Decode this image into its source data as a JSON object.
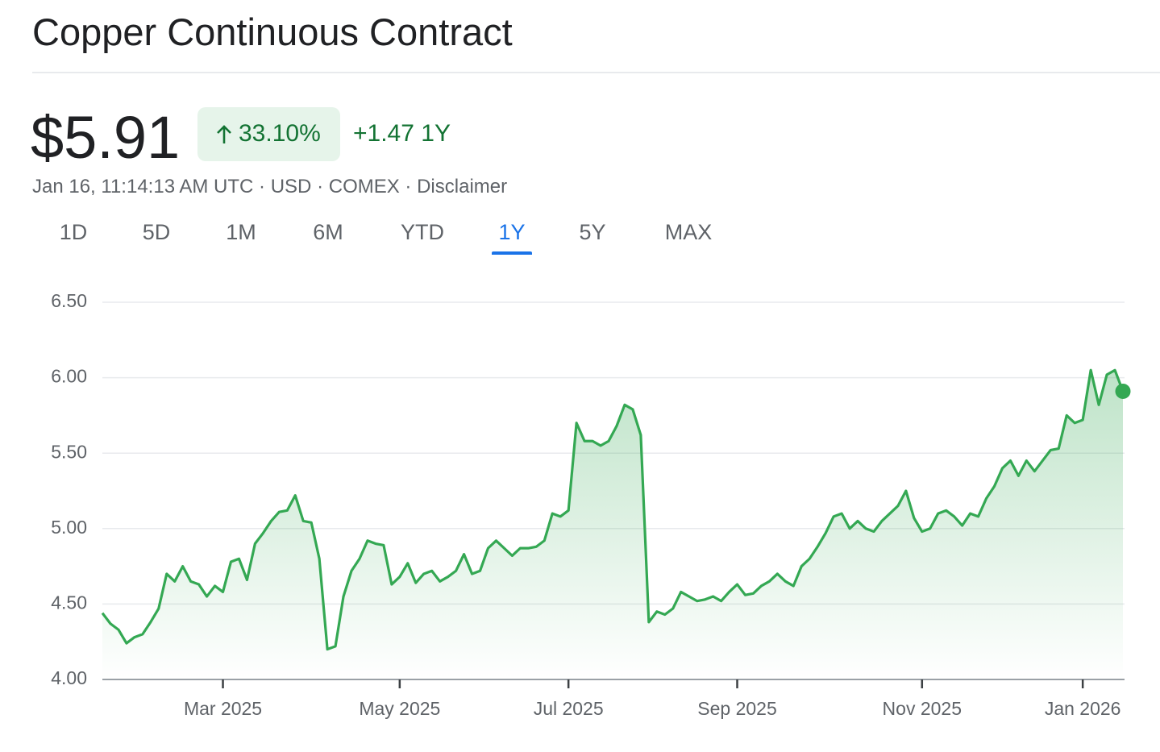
{
  "header": {
    "title": "Copper Continuous Contract"
  },
  "quote": {
    "price": "$5.91",
    "change_percent": "33.10%",
    "change": "+1.47",
    "period": "1Y"
  },
  "meta": {
    "items": [
      "Jan 16, 11:14:13 AM UTC",
      "USD",
      "COMEX",
      "Disclaimer"
    ],
    "separator": "·"
  },
  "tabs": [
    {
      "label": "1D"
    },
    {
      "label": "5D"
    },
    {
      "label": "1M"
    },
    {
      "label": "6M"
    },
    {
      "label": "YTD"
    },
    {
      "label": "1Y",
      "selected": true
    },
    {
      "label": "5Y"
    },
    {
      "label": "MAX"
    }
  ],
  "chart_data": {
    "type": "line",
    "color": "#34a853",
    "grid": true,
    "ylim": [
      4,
      6.5
    ],
    "yticks": [
      {
        "value": 4,
        "label": "4.00"
      },
      {
        "value": 4.5,
        "label": "4.50"
      },
      {
        "value": 5,
        "label": "5.00"
      },
      {
        "value": 5.5,
        "label": "5.50"
      },
      {
        "value": 6,
        "label": "6.00"
      },
      {
        "value": 6.5,
        "label": "6.50"
      }
    ],
    "categories": [
      null,
      null,
      null,
      null,
      null,
      null,
      null,
      null,
      null,
      null,
      null,
      null,
      null,
      null,
      null,
      "Mar 2025",
      null,
      null,
      null,
      null,
      null,
      null,
      null,
      null,
      null,
      null,
      null,
      null,
      null,
      null,
      null,
      null,
      null,
      null,
      null,
      null,
      null,
      "May 2025",
      null,
      null,
      null,
      null,
      null,
      null,
      null,
      null,
      null,
      null,
      null,
      null,
      null,
      null,
      null,
      null,
      null,
      null,
      null,
      null,
      "Jul 2025",
      null,
      null,
      null,
      null,
      null,
      null,
      null,
      null,
      null,
      null,
      null,
      null,
      null,
      null,
      null,
      null,
      null,
      null,
      null,
      null,
      "Sep 2025",
      null,
      null,
      null,
      null,
      null,
      null,
      null,
      null,
      null,
      null,
      null,
      null,
      null,
      null,
      null,
      null,
      null,
      null,
      null,
      null,
      null,
      null,
      "Nov 2025",
      null,
      null,
      null,
      null,
      null,
      null,
      null,
      null,
      null,
      null,
      null,
      null,
      null,
      null,
      null,
      null,
      null,
      null,
      null,
      "Jan 2026",
      null,
      null,
      null,
      null,
      null
    ],
    "values": [
      4.44,
      4.37,
      4.33,
      4.24,
      4.28,
      4.3,
      4.38,
      4.47,
      4.7,
      4.65,
      4.75,
      4.65,
      4.63,
      4.55,
      4.62,
      4.58,
      4.78,
      4.8,
      4.66,
      4.9,
      4.97,
      5.05,
      5.11,
      5.12,
      5.22,
      5.05,
      5.04,
      4.8,
      4.2,
      4.22,
      4.55,
      4.72,
      4.8,
      4.92,
      4.9,
      4.89,
      4.63,
      4.68,
      4.77,
      4.64,
      4.7,
      4.72,
      4.65,
      4.68,
      4.72,
      4.83,
      4.7,
      4.72,
      4.87,
      4.92,
      4.87,
      4.82,
      4.87,
      4.87,
      4.88,
      4.92,
      5.1,
      5.08,
      5.12,
      5.7,
      5.58,
      5.58,
      5.55,
      5.58,
      5.68,
      5.82,
      5.79,
      5.62,
      4.38,
      4.45,
      4.43,
      4.47,
      4.58,
      4.55,
      4.52,
      4.53,
      4.55,
      4.52,
      4.58,
      4.63,
      4.56,
      4.57,
      4.62,
      4.65,
      4.7,
      4.65,
      4.62,
      4.75,
      4.8,
      4.88,
      4.97,
      5.08,
      5.1,
      5.0,
      5.05,
      5.0,
      4.98,
      5.05,
      5.1,
      5.15,
      5.25,
      5.07,
      4.98,
      5.0,
      5.1,
      5.12,
      5.08,
      5.02,
      5.1,
      5.08,
      5.2,
      5.28,
      5.4,
      5.45,
      5.35,
      5.45,
      5.38,
      5.45,
      5.52,
      5.53,
      5.75,
      5.7,
      5.72,
      6.05,
      5.82,
      6.02,
      6.05,
      5.91
    ]
  }
}
